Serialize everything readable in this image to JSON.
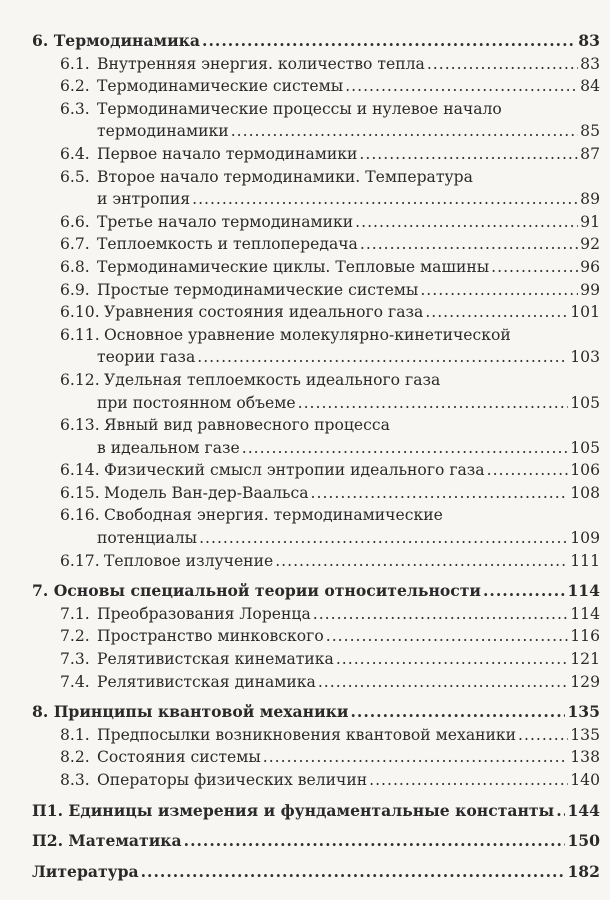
{
  "sections": [
    {
      "num": "6.",
      "title": "Термодинамика",
      "page": "83",
      "items": [
        {
          "num": "6.1.",
          "lines": [
            "Внутренняя энергия. количество тепла"
          ],
          "page": "83"
        },
        {
          "num": "6.2.",
          "lines": [
            "Термодинамические системы"
          ],
          "page": "84"
        },
        {
          "num": "6.3.",
          "lines": [
            "Термодинамические процессы и нулевое начало",
            "термодинамики"
          ],
          "page": "85"
        },
        {
          "num": "6.4.",
          "lines": [
            "Первое начало термодинамики"
          ],
          "page": "87"
        },
        {
          "num": "6.5.",
          "lines": [
            "Второе начало термодинамики. Температура",
            "и энтропия"
          ],
          "page": "89"
        },
        {
          "num": "6.6.",
          "lines": [
            "Третье начало термодинамики"
          ],
          "page": "91"
        },
        {
          "num": "6.7.",
          "lines": [
            "Теплоемкость и теплопередача"
          ],
          "page": "92"
        },
        {
          "num": "6.8.",
          "lines": [
            "Термодинамические циклы. Тепловые машины"
          ],
          "page": "96"
        },
        {
          "num": "6.9.",
          "lines": [
            "Простые термодинамические системы"
          ],
          "page": "99"
        },
        {
          "num": "6.10.",
          "lines": [
            "Уравнения состояния идеального газа"
          ],
          "page": "101"
        },
        {
          "num": "6.11.",
          "lines": [
            "Основное уравнение молекулярно-кинетической",
            "теории газа"
          ],
          "page": "103"
        },
        {
          "num": "6.12.",
          "lines": [
            "Удельная теплоемкость идеального газа",
            "при постоянном объеме"
          ],
          "page": "105"
        },
        {
          "num": "6.13.",
          "lines": [
            "Явный вид равновесного процесса",
            "в идеальном газе"
          ],
          "page": "105"
        },
        {
          "num": "6.14.",
          "lines": [
            "Физический смысл энтропии идеального газа"
          ],
          "page": "106"
        },
        {
          "num": "6.15.",
          "lines": [
            "Модель Ван-дер-Ваальса"
          ],
          "page": "108"
        },
        {
          "num": "6.16.",
          "lines": [
            "Свободная энергия. термодинамические",
            "потенциалы"
          ],
          "page": "109"
        },
        {
          "num": "6.17.",
          "lines": [
            "Тепловое излучение"
          ],
          "page": "111"
        }
      ]
    },
    {
      "num": "7.",
      "title": "Основы специальной теории относительности",
      "page": "114",
      "items": [
        {
          "num": "7.1.",
          "lines": [
            "Преобразования Лоренца"
          ],
          "page": "114"
        },
        {
          "num": "7.2.",
          "lines": [
            "Пространство минковского"
          ],
          "page": "116"
        },
        {
          "num": "7.3.",
          "lines": [
            "Релятивистская кинематика"
          ],
          "page": "121"
        },
        {
          "num": "7.4.",
          "lines": [
            "Релятивистская динамика"
          ],
          "page": "129"
        }
      ]
    },
    {
      "num": "8.",
      "title": "Принципы квантовой механики",
      "page": "135",
      "items": [
        {
          "num": "8.1.",
          "lines": [
            "Предпосылки возникновения квантовой механики"
          ],
          "page": "135"
        },
        {
          "num": "8.2.",
          "lines": [
            "Состояния системы"
          ],
          "page": "138"
        },
        {
          "num": "8.3.",
          "lines": [
            "Операторы физических величин"
          ],
          "page": "140"
        }
      ]
    },
    {
      "num": "П1.",
      "title": "Единицы измерения и фундаментальные константы",
      "page": "144",
      "items": []
    },
    {
      "num": "П2.",
      "title": "Математика",
      "page": "150",
      "items": []
    },
    {
      "num": "",
      "title": "Литература",
      "page": "182",
      "items": []
    }
  ]
}
